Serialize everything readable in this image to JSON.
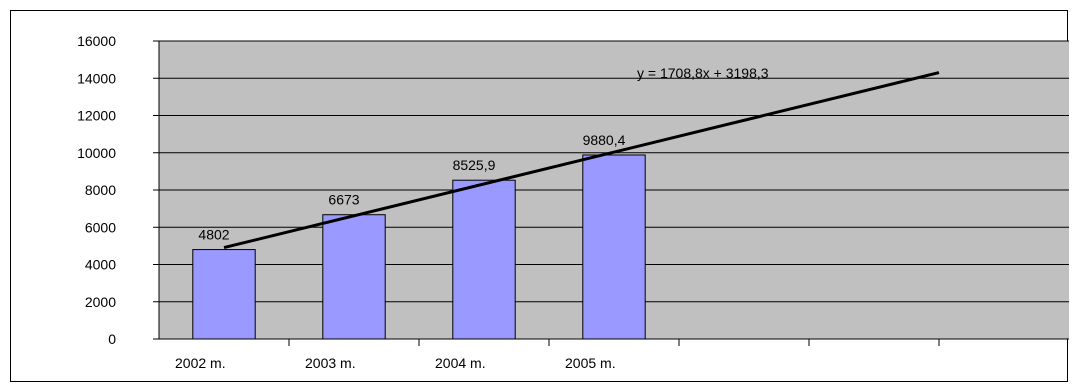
{
  "chart_data": {
    "type": "bar",
    "title": "",
    "xlabel": "",
    "ylabel": "",
    "categories": [
      "2002 m.",
      "2003 m.",
      "2004 m.",
      "2005 m.",
      "",
      "",
      ""
    ],
    "series": [
      {
        "values": [
          4802,
          6673,
          8525.9,
          9880.4,
          null,
          null,
          null
        ]
      }
    ],
    "data_labels": [
      "4802",
      "6673",
      "8525,9",
      "9880,4"
    ],
    "y_ticks": [
      "0",
      "2000",
      "4000",
      "6000",
      "8000",
      "10000",
      "12000",
      "14000",
      "16000"
    ],
    "ylim": [
      0,
      16000
    ],
    "grid": true,
    "legend": "none",
    "trendline": {
      "type": "linear",
      "equation": "y = 1708,8x + 3198,3",
      "slope": 1708.8,
      "intercept": 3198.3,
      "x_start": 1,
      "x_end": 6.5
    },
    "colors": {
      "plot_background": "#c0c0c0",
      "bar_fill": "#9999ff",
      "bar_stroke": "#000000",
      "gridline": "#000000",
      "trendline": "#000000"
    }
  }
}
